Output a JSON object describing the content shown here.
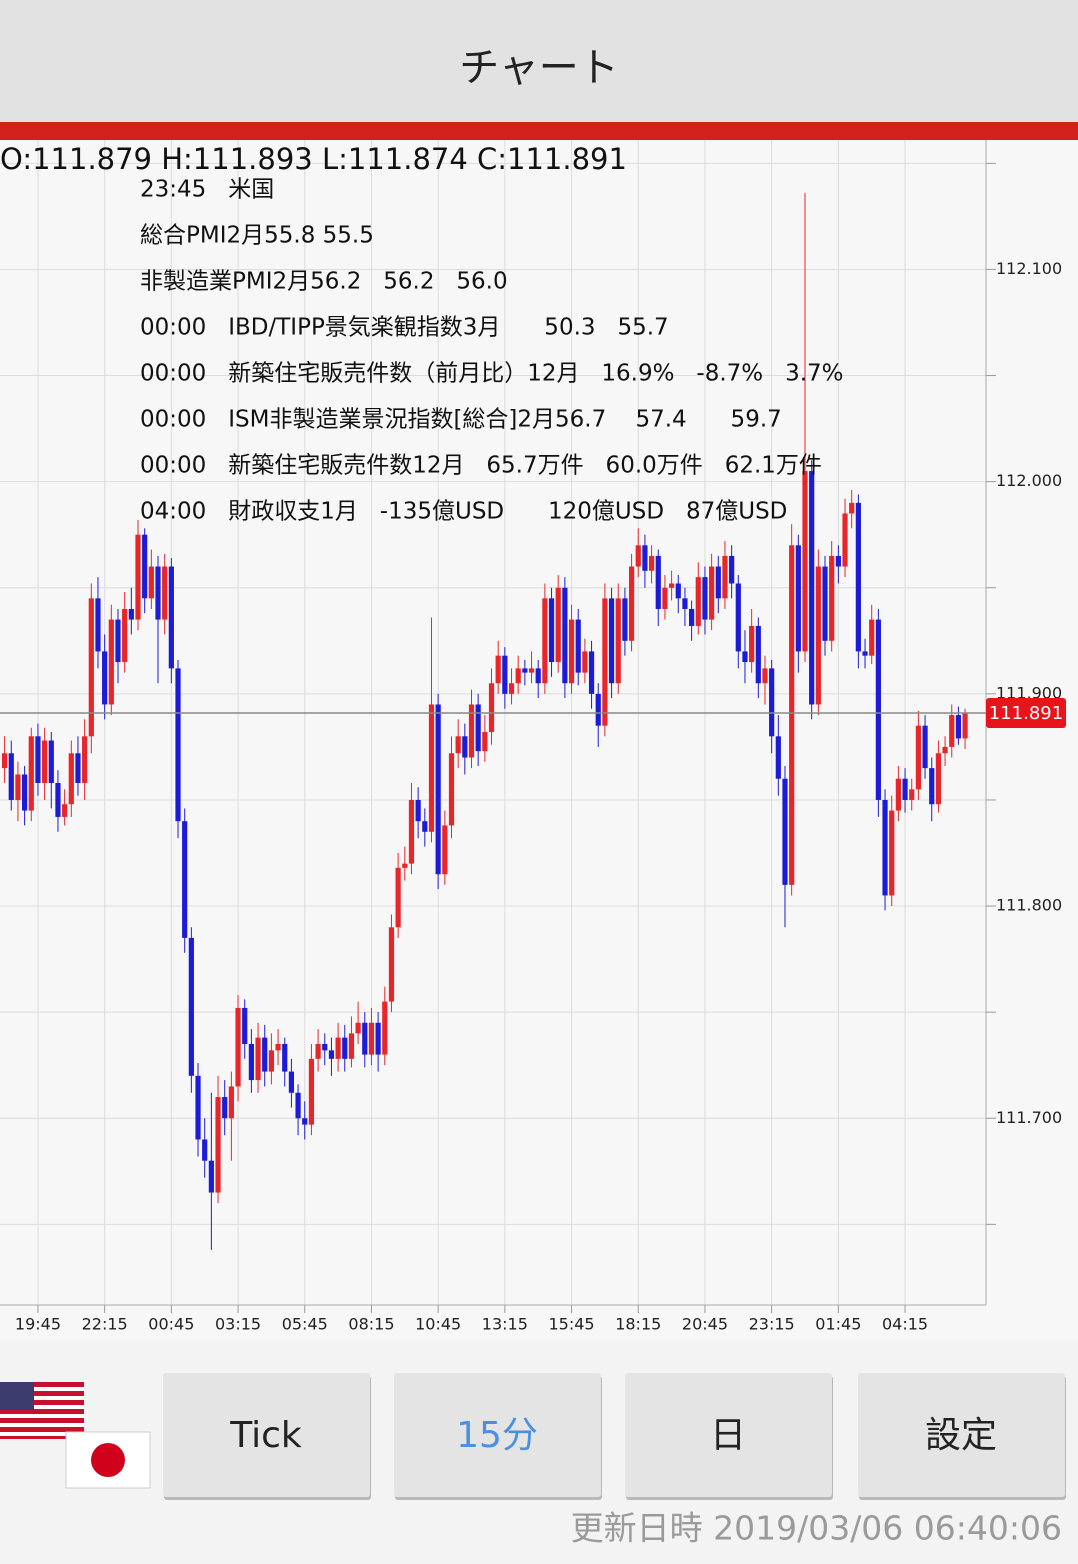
{
  "app_bar": {
    "title": "チャート"
  },
  "chart_data": {
    "type": "candlestick",
    "ohlc_header": "O:111.879 H:111.893 L:111.874 C:111.891",
    "up_color": "#e8262a",
    "down_color": "#1c1cd8",
    "ylim": [
      111.612,
      112.161
    ],
    "yticks": [
      {
        "value": 112.1,
        "label": "112.100"
      },
      {
        "value": 112.0,
        "label": "112.000"
      },
      {
        "value": 111.9,
        "label": "111.900"
      },
      {
        "value": 111.8,
        "label": "111.800"
      },
      {
        "value": 111.7,
        "label": "111.700"
      }
    ],
    "minor_yticks": [
      112.15,
      112.05,
      111.95,
      111.85,
      111.75,
      111.65
    ],
    "last_price": 111.891,
    "categories": [
      null,
      null,
      null,
      null,
      null,
      "19:45",
      null,
      null,
      null,
      null,
      null,
      null,
      null,
      null,
      null,
      "22:15",
      null,
      null,
      null,
      null,
      null,
      null,
      null,
      null,
      null,
      "00:45",
      null,
      null,
      null,
      null,
      null,
      null,
      null,
      null,
      null,
      "03:15",
      null,
      null,
      null,
      null,
      null,
      null,
      null,
      null,
      null,
      "05:45",
      null,
      null,
      null,
      null,
      null,
      null,
      null,
      null,
      null,
      "08:15",
      null,
      null,
      null,
      null,
      null,
      null,
      null,
      null,
      null,
      "10:45",
      null,
      null,
      null,
      null,
      null,
      null,
      null,
      null,
      null,
      "13:15",
      null,
      null,
      null,
      null,
      null,
      null,
      null,
      null,
      null,
      "15:45",
      null,
      null,
      null,
      null,
      null,
      null,
      null,
      null,
      null,
      "18:15",
      null,
      null,
      null,
      null,
      null,
      null,
      null,
      null,
      null,
      "20:45",
      null,
      null,
      null,
      null,
      null,
      null,
      null,
      null,
      null,
      "23:15",
      null,
      null,
      null,
      null,
      null,
      null,
      null,
      null,
      null,
      "01:45",
      null,
      null,
      null,
      null,
      null,
      null,
      null,
      null,
      null,
      "04:15",
      null,
      null,
      null,
      null,
      null,
      null,
      null,
      null,
      null
    ],
    "candles": [
      [
        111.865,
        111.88,
        111.858,
        111.872
      ],
      [
        111.872,
        111.878,
        111.845,
        111.85
      ],
      [
        111.85,
        111.868,
        111.84,
        111.862
      ],
      [
        111.862,
        111.866,
        111.838,
        111.845
      ],
      [
        111.845,
        111.884,
        111.84,
        111.88
      ],
      [
        111.88,
        111.886,
        111.852,
        111.858
      ],
      [
        111.858,
        111.884,
        111.85,
        111.878
      ],
      [
        111.878,
        111.882,
        111.846,
        111.858
      ],
      [
        111.858,
        111.864,
        111.835,
        111.842
      ],
      [
        111.842,
        111.855,
        111.838,
        111.848
      ],
      [
        111.848,
        111.878,
        111.842,
        111.872
      ],
      [
        111.872,
        111.88,
        111.852,
        111.858
      ],
      [
        111.858,
        111.888,
        111.85,
        111.88
      ],
      [
        111.88,
        111.952,
        111.872,
        111.945
      ],
      [
        111.945,
        111.955,
        111.912,
        111.92
      ],
      [
        111.92,
        111.928,
        111.888,
        111.895
      ],
      [
        111.895,
        111.942,
        111.89,
        111.935
      ],
      [
        111.935,
        111.94,
        111.905,
        111.915
      ],
      [
        111.915,
        111.948,
        111.91,
        111.94
      ],
      [
        111.94,
        111.95,
        111.928,
        111.935
      ],
      [
        111.935,
        111.982,
        111.93,
        111.975
      ],
      [
        111.975,
        111.978,
        111.938,
        111.945
      ],
      [
        111.945,
        111.968,
        111.94,
        111.96
      ],
      [
        111.96,
        111.965,
        111.905,
        111.935
      ],
      [
        111.935,
        111.966,
        111.928,
        111.96
      ],
      [
        111.96,
        111.964,
        111.905,
        111.912
      ],
      [
        111.912,
        111.916,
        111.832,
        111.84
      ],
      [
        111.84,
        111.846,
        111.778,
        111.785
      ],
      [
        111.785,
        111.79,
        111.712,
        111.72
      ],
      [
        111.72,
        111.726,
        111.682,
        111.69
      ],
      [
        111.69,
        111.7,
        111.672,
        111.68
      ],
      [
        111.68,
        111.712,
        111.638,
        111.665
      ],
      [
        111.665,
        111.72,
        111.66,
        111.71
      ],
      [
        111.71,
        111.718,
        111.692,
        111.7
      ],
      [
        111.7,
        111.722,
        111.68,
        111.715
      ],
      [
        111.715,
        111.758,
        111.708,
        111.752
      ],
      [
        111.752,
        111.756,
        111.728,
        111.735
      ],
      [
        111.735,
        111.742,
        111.712,
        111.718
      ],
      [
        111.718,
        111.745,
        111.712,
        111.738
      ],
      [
        111.738,
        111.744,
        111.715,
        111.722
      ],
      [
        111.722,
        111.74,
        111.716,
        111.732
      ],
      [
        111.732,
        111.742,
        111.725,
        111.735
      ],
      [
        111.735,
        111.738,
        111.715,
        111.722
      ],
      [
        111.722,
        111.728,
        111.705,
        111.712
      ],
      [
        111.712,
        111.716,
        111.692,
        111.7
      ],
      [
        111.7,
        111.708,
        111.69,
        111.697
      ],
      [
        111.697,
        111.735,
        111.692,
        111.728
      ],
      [
        111.728,
        111.742,
        111.722,
        111.735
      ],
      [
        111.735,
        111.74,
        111.725,
        111.732
      ],
      [
        111.732,
        111.738,
        111.72,
        111.728
      ],
      [
        111.728,
        111.745,
        111.722,
        111.738
      ],
      [
        111.738,
        111.744,
        111.722,
        111.728
      ],
      [
        111.728,
        111.748,
        111.724,
        111.74
      ],
      [
        111.74,
        111.755,
        111.735,
        111.745
      ],
      [
        111.745,
        111.75,
        111.724,
        111.73
      ],
      [
        111.73,
        111.752,
        111.725,
        111.745
      ],
      [
        111.745,
        111.75,
        111.722,
        111.73
      ],
      [
        111.73,
        111.762,
        111.725,
        111.755
      ],
      [
        111.755,
        111.796,
        111.75,
        111.79
      ],
      [
        111.79,
        111.825,
        111.785,
        111.818
      ],
      [
        111.818,
        111.828,
        111.812,
        111.82
      ],
      [
        111.82,
        111.858,
        111.815,
        111.85
      ],
      [
        111.85,
        111.856,
        111.832,
        111.84
      ],
      [
        111.84,
        111.846,
        111.828,
        111.835
      ],
      [
        111.835,
        111.936,
        111.83,
        111.895
      ],
      [
        111.895,
        111.9,
        111.808,
        111.815
      ],
      [
        111.815,
        111.845,
        111.81,
        111.838
      ],
      [
        111.838,
        111.88,
        111.832,
        111.872
      ],
      [
        111.872,
        111.888,
        111.865,
        111.88
      ],
      [
        111.88,
        111.886,
        111.862,
        111.87
      ],
      [
        111.87,
        111.902,
        111.865,
        111.895
      ],
      [
        111.895,
        111.9,
        111.866,
        111.873
      ],
      [
        111.873,
        111.89,
        111.868,
        111.882
      ],
      [
        111.882,
        111.912,
        111.876,
        111.905
      ],
      [
        111.905,
        111.925,
        111.9,
        111.918
      ],
      [
        111.918,
        111.922,
        111.893,
        111.9
      ],
      [
        111.9,
        111.912,
        111.895,
        111.905
      ],
      [
        111.905,
        111.918,
        111.9,
        111.912
      ],
      [
        111.912,
        111.916,
        111.904,
        111.91
      ],
      [
        111.91,
        111.92,
        111.905,
        111.912
      ],
      [
        111.912,
        111.916,
        111.898,
        111.905
      ],
      [
        111.905,
        111.952,
        111.9,
        111.945
      ],
      [
        111.945,
        111.95,
        111.908,
        111.915
      ],
      [
        111.915,
        111.956,
        111.91,
        111.95
      ],
      [
        111.95,
        111.955,
        111.898,
        111.905
      ],
      [
        111.905,
        111.942,
        111.9,
        111.935
      ],
      [
        111.935,
        111.94,
        111.904,
        111.91
      ],
      [
        111.91,
        111.926,
        111.905,
        111.92
      ],
      [
        111.92,
        111.925,
        111.893,
        111.9
      ],
      [
        111.9,
        111.905,
        111.875,
        111.885
      ],
      [
        111.885,
        111.952,
        111.88,
        111.945
      ],
      [
        111.945,
        111.95,
        111.898,
        111.905
      ],
      [
        111.905,
        111.952,
        111.9,
        111.945
      ],
      [
        111.945,
        111.95,
        111.918,
        111.925
      ],
      [
        111.925,
        111.966,
        111.92,
        111.96
      ],
      [
        111.96,
        111.978,
        111.955,
        111.97
      ],
      [
        111.97,
        111.975,
        111.95,
        111.958
      ],
      [
        111.958,
        111.97,
        111.952,
        111.965
      ],
      [
        111.965,
        111.968,
        111.932,
        111.94
      ],
      [
        111.94,
        111.956,
        111.935,
        111.95
      ],
      [
        111.95,
        111.958,
        111.944,
        111.952
      ],
      [
        111.952,
        111.956,
        111.938,
        111.945
      ],
      [
        111.945,
        111.95,
        111.932,
        111.94
      ],
      [
        111.94,
        111.944,
        111.925,
        111.932
      ],
      [
        111.932,
        111.962,
        111.928,
        111.955
      ],
      [
        111.955,
        111.96,
        111.928,
        111.935
      ],
      [
        111.935,
        111.966,
        111.93,
        111.96
      ],
      [
        111.96,
        111.965,
        111.938,
        111.945
      ],
      [
        111.945,
        111.972,
        111.94,
        111.965
      ],
      [
        111.965,
        111.97,
        111.945,
        111.952
      ],
      [
        111.952,
        111.956,
        111.912,
        111.92
      ],
      [
        111.92,
        111.93,
        111.905,
        111.915
      ],
      [
        111.915,
        111.94,
        111.91,
        111.932
      ],
      [
        111.932,
        111.936,
        111.898,
        111.905
      ],
      [
        111.905,
        111.918,
        111.895,
        111.912
      ],
      [
        111.912,
        111.916,
        111.872,
        111.88
      ],
      [
        111.88,
        111.89,
        111.852,
        111.86
      ],
      [
        111.86,
        111.866,
        111.79,
        111.81
      ],
      [
        111.81,
        111.98,
        111.805,
        111.97
      ],
      [
        111.97,
        111.975,
        111.91,
        111.92
      ],
      [
        111.92,
        112.136,
        111.915,
        112.005
      ],
      [
        112.005,
        112.01,
        111.888,
        111.895
      ],
      [
        111.895,
        111.968,
        111.89,
        111.96
      ],
      [
        111.96,
        111.965,
        111.918,
        111.925
      ],
      [
        111.925,
        111.972,
        111.92,
        111.965
      ],
      [
        111.965,
        111.97,
        111.952,
        111.96
      ],
      [
        111.96,
        111.992,
        111.955,
        111.985
      ],
      [
        111.985,
        111.996,
        111.978,
        111.99
      ],
      [
        111.99,
        111.994,
        111.912,
        111.92
      ],
      [
        111.92,
        111.926,
        111.912,
        111.918
      ],
      [
        111.918,
        111.942,
        111.914,
        111.935
      ],
      [
        111.935,
        111.94,
        111.842,
        111.85
      ],
      [
        111.85,
        111.855,
        111.798,
        111.805
      ],
      [
        111.805,
        111.852,
        111.8,
        111.845
      ],
      [
        111.845,
        111.866,
        111.84,
        111.86
      ],
      [
        111.86,
        111.865,
        111.844,
        111.85
      ],
      [
        111.85,
        111.86,
        111.845,
        111.855
      ],
      [
        111.855,
        111.892,
        111.85,
        111.885
      ],
      [
        111.885,
        111.89,
        111.86,
        111.865
      ],
      [
        111.865,
        111.87,
        111.84,
        111.848
      ],
      [
        111.848,
        111.878,
        111.844,
        111.872
      ],
      [
        111.872,
        111.88,
        111.866,
        111.875
      ],
      [
        111.875,
        111.895,
        111.87,
        111.89
      ],
      [
        111.89,
        111.894,
        111.876,
        111.879
      ],
      [
        111.879,
        111.893,
        111.874,
        111.891
      ]
    ]
  },
  "events": [
    "23:45   米国",
    "総合PMI2月55.8 55.5",
    "非製造業PMI2月56.2   56.2   56.0",
    "00:00   IBD/TIPP景気楽観指数3月      50.3   55.7",
    "00:00   新築住宅販売件数（前月比）12月   16.9%   -8.7%   3.7%",
    "00:00   ISM非製造業景況指数[総合]2月56.7    57.4      59.7",
    "00:00   新築住宅販売件数12月   65.7万件   60.0万件   62.1万件",
    "04:00   財政収支1月   -135億USD      120億USD   87億USD"
  ],
  "buttons": [
    "Tick",
    "15分",
    "日",
    "設定"
  ],
  "footer": {
    "updated": "更新日時 2019/03/06 06:40:06"
  }
}
